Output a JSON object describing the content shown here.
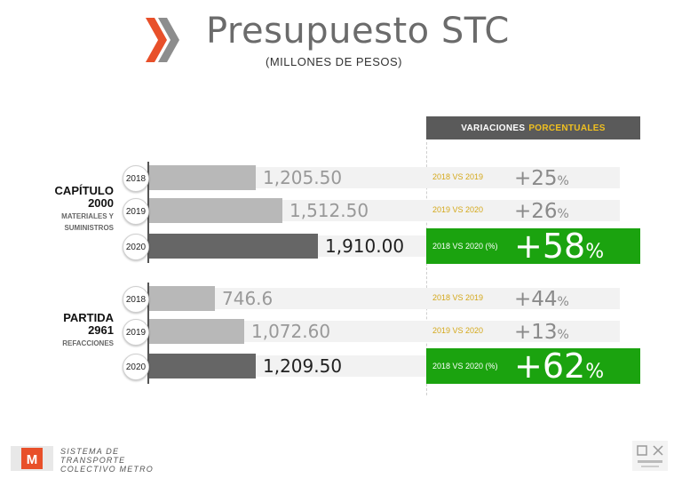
{
  "header": {
    "title": "Presupuesto STC",
    "subtitle": "(MILLONES DE PESOS)"
  },
  "variations_header": {
    "label": "VARIACIONES",
    "accent": "PORCENTUALES"
  },
  "colors": {
    "bar_light": "#b8b8b8",
    "bar_dark": "#666666",
    "highlight": "#1ba30f",
    "chevron": "#e8502a"
  },
  "chart_data": {
    "type": "bar",
    "orientation": "horizontal",
    "title": "Presupuesto STC",
    "subtitle": "(MILLONES DE PESOS)",
    "groups": [
      {
        "name_lines": [
          "CAPÍTULO",
          "2000"
        ],
        "sub_lines": [
          "MATERIALES Y",
          "SUMINISTROS"
        ],
        "bars": [
          {
            "year": "2018",
            "value": 1205.5,
            "label": "1,205.50"
          },
          {
            "year": "2019",
            "value": 1512.5,
            "label": "1,512.50"
          },
          {
            "year": "2020",
            "value": 1910.0,
            "label": "1,910.00"
          }
        ],
        "variations": [
          {
            "label": "2018 VS 2019",
            "value": 25,
            "text": "+25",
            "unit": "%"
          },
          {
            "label": "2019 VS 2020",
            "value": 26,
            "text": "+26",
            "unit": "%"
          },
          {
            "label": "2018 VS 2020 (%)",
            "value": 58,
            "text": "+58",
            "unit": "%"
          }
        ]
      },
      {
        "name_lines": [
          "PARTIDA",
          "2961"
        ],
        "sub_lines": [
          "REFACCIONES"
        ],
        "bars": [
          {
            "year": "2018",
            "value": 746.6,
            "label": "746.6"
          },
          {
            "year": "2019",
            "value": 1072.6,
            "label": "1,072.60"
          },
          {
            "year": "2020",
            "value": 1209.5,
            "label": "1,209.50"
          }
        ],
        "variations": [
          {
            "label": "2018 VS 2019",
            "value": 44,
            "text": "+44",
            "unit": "%"
          },
          {
            "label": "2019 VS 2020",
            "value": 13,
            "text": "+13",
            "unit": "%"
          },
          {
            "label": "2018 VS 2020 (%)",
            "value": 62,
            "text": "+62",
            "unit": "%"
          }
        ]
      }
    ]
  },
  "footer": {
    "org_lines": [
      "SISTEMA DE",
      "TRANSPORTE",
      "COLECTIVO METRO"
    ],
    "logo_text": "M",
    "emblem_icon": "government-emblem-icon"
  }
}
